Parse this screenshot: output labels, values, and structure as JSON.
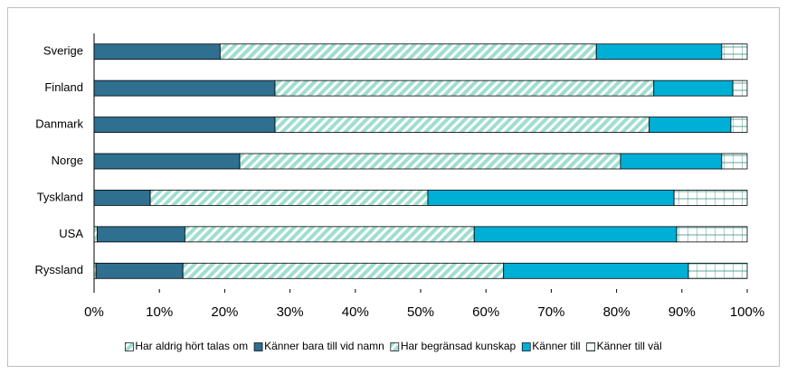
{
  "chart_data": {
    "type": "stacked_barh",
    "categories": [
      "Sverige",
      "Finland",
      "Danmark",
      "Norge",
      "Tyskland",
      "USA",
      "Ryssland"
    ],
    "series": [
      {
        "name": "Har aldrig hört talas om",
        "color": "#9fded0",
        "pattern": "diagonal",
        "values": [
          0,
          0,
          0,
          0,
          0,
          0.5,
          0.3
        ]
      },
      {
        "name": "Känner bara till vid namn",
        "color": "#2f6f8f",
        "values": [
          19.3,
          27.7,
          27.7,
          22.3,
          8.6,
          13.4,
          13.3
        ]
      },
      {
        "name": "Har begränsad kunskap",
        "color": "#9fded0",
        "pattern": "diagonal",
        "values": [
          57.6,
          58.0,
          57.3,
          58.3,
          42.5,
          44.3,
          49.1
        ]
      },
      {
        "name": "Känner till",
        "color": "#00afd6",
        "values": [
          19.2,
          12.1,
          12.5,
          15.5,
          37.7,
          31.0,
          28.3
        ]
      },
      {
        "name": "Känner till väl",
        "color": "#ffffff",
        "pattern": "grid",
        "values": [
          3.9,
          2.2,
          2.5,
          3.9,
          11.2,
          10.8,
          9.0
        ]
      }
    ],
    "xlim": [
      0,
      100
    ],
    "xticks": [
      {
        "value": 0,
        "label": "0%"
      },
      {
        "value": 10,
        "label": "10%"
      },
      {
        "value": 20,
        "label": "20%"
      },
      {
        "value": 30,
        "label": "30%"
      },
      {
        "value": 40,
        "label": "40%"
      },
      {
        "value": 50,
        "label": "50%"
      },
      {
        "value": 60,
        "label": "60%"
      },
      {
        "value": 70,
        "label": "70%"
      },
      {
        "value": 80,
        "label": "80%"
      },
      {
        "value": 90,
        "label": "90%"
      },
      {
        "value": 100,
        "label": "100%"
      }
    ],
    "legend": "bottom"
  }
}
